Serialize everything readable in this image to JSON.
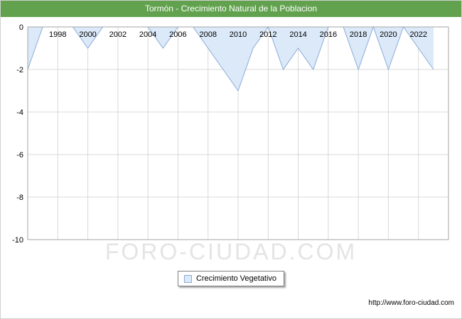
{
  "header": {
    "title": "Tormón - Crecimiento Natural de la Poblacion"
  },
  "watermark": "FORO-CIUDAD.COM",
  "legend": {
    "label": "Crecimiento Vegetativo"
  },
  "footer": {
    "url": "http://www.foro-ciudad.com"
  },
  "colors": {
    "header_bg": "#62a24f",
    "area_fill": "#dbe9f8",
    "area_line": "#8cacd8",
    "grid": "#d9d9d9",
    "plot_border": "#a6a6a6",
    "watermark": "#e4e4e4"
  },
  "chart_data": {
    "type": "area",
    "title": "Tormón - Crecimiento Natural de la Poblacion",
    "xlabel": "",
    "ylabel": "",
    "x": [
      1996,
      1997,
      1998,
      1999,
      2000,
      2001,
      2002,
      2003,
      2004,
      2005,
      2006,
      2007,
      2008,
      2009,
      2010,
      2011,
      2012,
      2013,
      2014,
      2015,
      2016,
      2017,
      2018,
      2019,
      2020,
      2021,
      2022,
      2023
    ],
    "series": [
      {
        "name": "Crecimiento Vegetativo",
        "values": [
          -2,
          0,
          0,
          0,
          -1,
          0,
          0,
          0,
          0,
          -1,
          0,
          0,
          -1,
          -2,
          -3,
          -1,
          0,
          -2,
          -1,
          -2,
          0,
          0,
          -2,
          0,
          -2,
          0,
          -1,
          -2
        ]
      }
    ],
    "ylim": [
      -10,
      0
    ],
    "yticks": [
      0,
      -2,
      -4,
      -6,
      -8,
      -10
    ],
    "xticks": [
      1998,
      2000,
      2002,
      2004,
      2006,
      2008,
      2010,
      2012,
      2014,
      2016,
      2018,
      2020,
      2022
    ],
    "grid": true,
    "legend_position": "bottom"
  }
}
